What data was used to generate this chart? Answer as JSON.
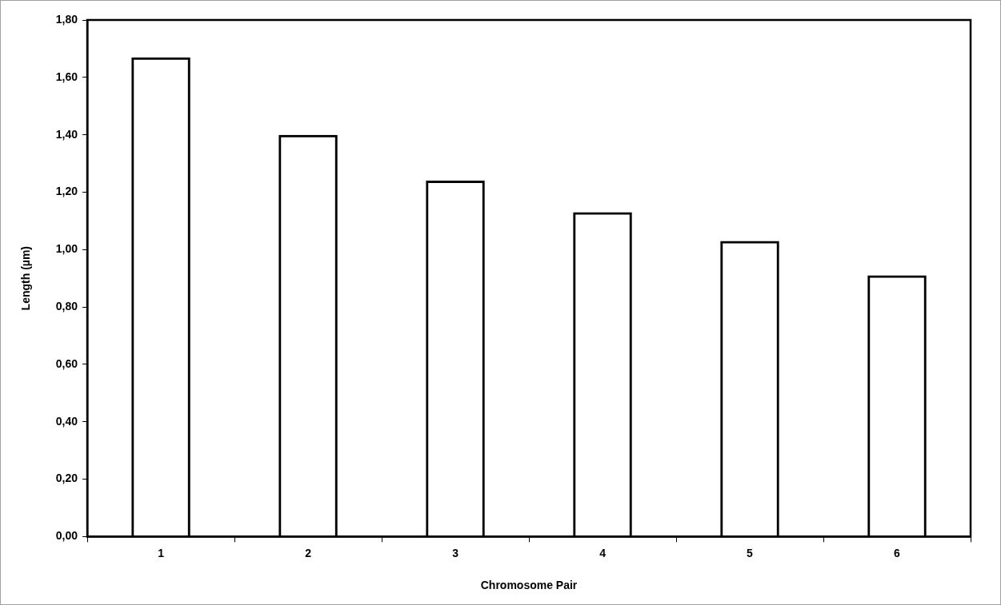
{
  "chart_data": {
    "type": "bar",
    "xlabel": "Chromosome Pair",
    "ylabel": "Length (µm)",
    "categories": [
      "1",
      "2",
      "3",
      "4",
      "5",
      "6"
    ],
    "values": [
      1.67,
      1.4,
      1.24,
      1.13,
      1.03,
      0.91
    ],
    "color": "#000000",
    "ylim": [
      0,
      1.8
    ],
    "yticks": [
      {
        "value": 0,
        "label": "0,00"
      },
      {
        "value": 0.2,
        "label": "0,20"
      },
      {
        "value": 0.4,
        "label": "0,40"
      },
      {
        "value": 0.6,
        "label": "0,60"
      },
      {
        "value": 0.8,
        "label": "0,80"
      },
      {
        "value": 1.0,
        "label": "1,00"
      },
      {
        "value": 1.2,
        "label": "1,20"
      },
      {
        "value": 1.4,
        "label": "1,40"
      },
      {
        "value": 1.6,
        "label": "1,60"
      },
      {
        "value": 1.8,
        "label": "1,80"
      }
    ],
    "grid": false,
    "legend": false
  }
}
